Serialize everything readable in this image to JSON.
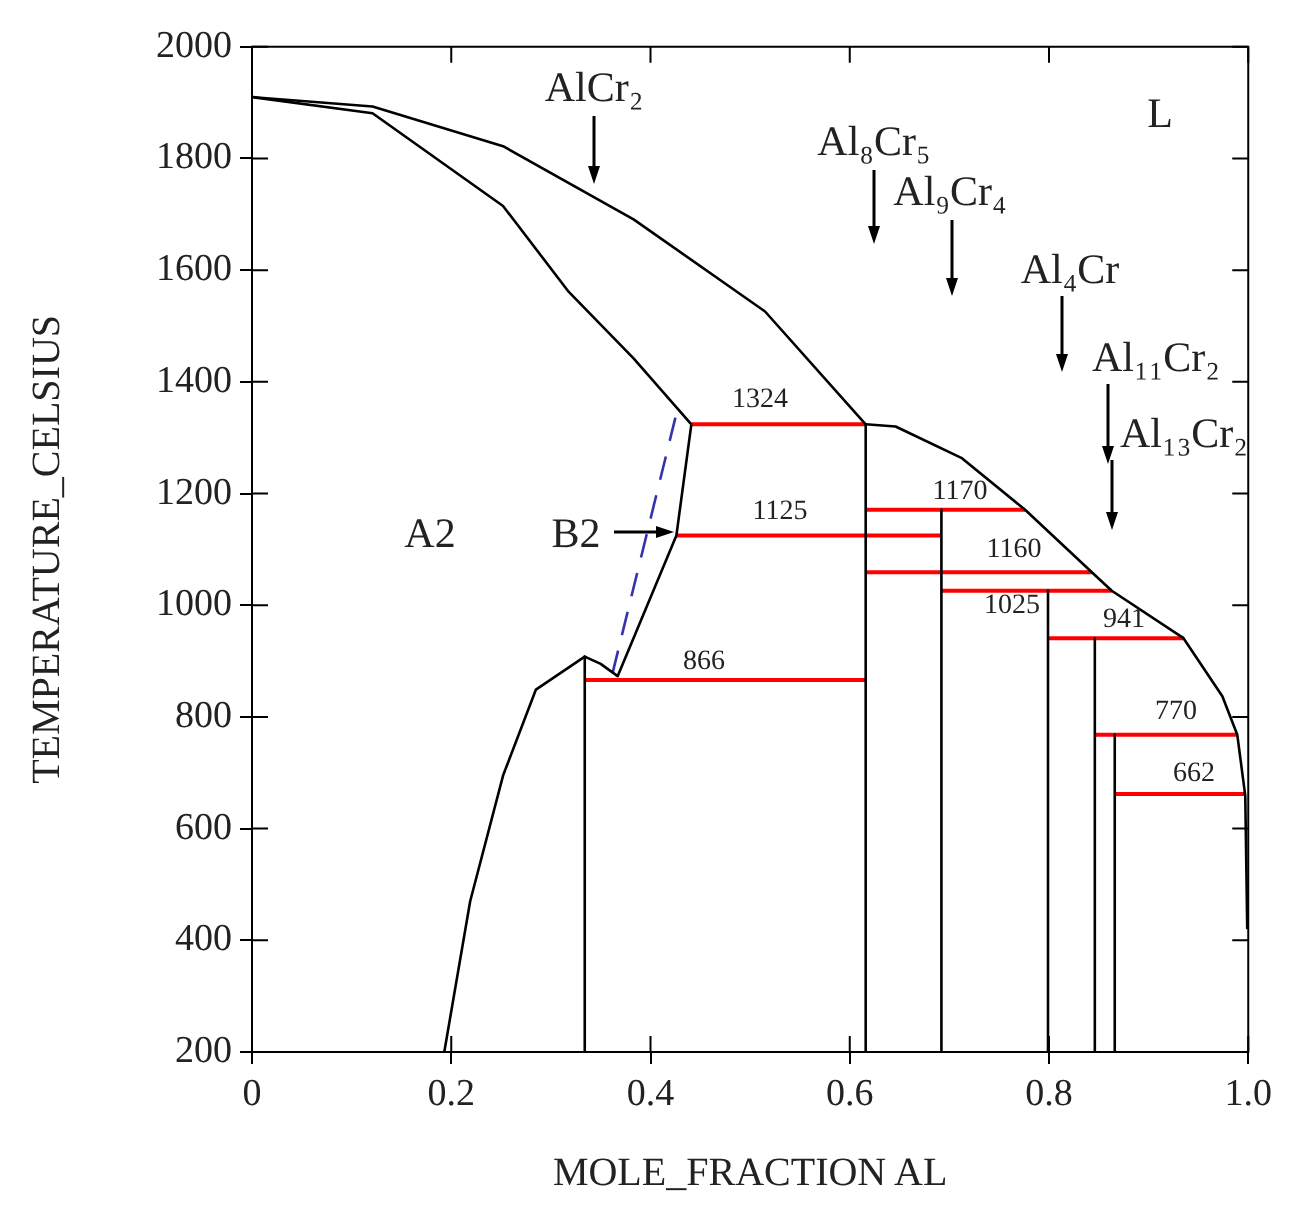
{
  "chart_data": {
    "type": "line",
    "xlabel": "MOLE_FRACTION AL",
    "ylabel": "TEMPERATURE_CELSIUS",
    "xlim": [
      0,
      1
    ],
    "ylim": [
      200,
      2000
    ],
    "xticks": [
      0,
      0.2,
      0.4,
      0.6,
      0.8,
      {
        "value": 1,
        "label": "1.0"
      }
    ],
    "yticks": [
      200,
      400,
      600,
      800,
      1000,
      1200,
      1400,
      1600,
      1800,
      2000
    ],
    "grid": false,
    "legend": false,
    "marker": "none",
    "series": [
      {
        "color": "#000000",
        "x": [
          0,
          0.121,
          0.252,
          0.383,
          0.515,
          0.616
        ],
        "values": [
          1910,
          1893,
          1822,
          1691,
          1526,
          1324
        ]
      },
      {
        "color": "#000000",
        "x": [
          0,
          0.121,
          0.252,
          0.318,
          0.383,
          0.441
        ],
        "values": [
          1910,
          1881,
          1715,
          1561,
          1442,
          1324
        ]
      },
      {
        "color": "#000000",
        "x": [
          0.441,
          0.426,
          0.367,
          0.35,
          0.334,
          0.285,
          0.252,
          0.219,
          0.193
        ],
        "values": [
          1324,
          1125,
          873,
          895,
          908,
          849,
          695,
          470,
          200
        ]
      },
      {
        "color": "#3333aa",
        "line_style": "dashed",
        "x": [
          0.425,
          0.362
        ],
        "values": [
          1336,
          879
        ]
      },
      {
        "color": "#000000",
        "x": [
          0.616,
          0.646,
          0.712,
          0.776,
          0.843,
          0.863,
          0.935,
          0.974,
          0.989,
          0.997,
          0.999
        ],
        "values": [
          1324,
          1320,
          1264,
          1171,
          1059,
          1026,
          941,
          837,
          768,
          659,
          420
        ]
      },
      {
        "color": "#000000",
        "x": [
          0.334,
          0.334
        ],
        "values": [
          908,
          200
        ]
      },
      {
        "color": "#000000",
        "x": [
          0.616,
          0.616
        ],
        "values": [
          1324,
          200
        ]
      },
      {
        "color": "#000000",
        "x": [
          0.692,
          0.692
        ],
        "values": [
          1171,
          200
        ]
      },
      {
        "color": "#000000",
        "x": [
          0.799,
          0.799
        ],
        "values": [
          1026,
          200
        ]
      },
      {
        "color": "#000000",
        "x": [
          0.846,
          0.846
        ],
        "values": [
          941,
          200
        ]
      },
      {
        "color": "#000000",
        "x": [
          0.866,
          0.866
        ],
        "values": [
          768,
          200
        ]
      },
      {
        "color": "#ff0000",
        "x": [
          0.441,
          0.616
        ],
        "values": [
          1324,
          1324
        ]
      },
      {
        "color": "#ff0000",
        "x": [
          0.426,
          0.692
        ],
        "values": [
          1125,
          1125
        ]
      },
      {
        "color": "#ff0000",
        "x": [
          0.334,
          0.616
        ],
        "values": [
          866,
          866
        ]
      },
      {
        "color": "#ff0000",
        "x": [
          0.616,
          0.776
        ],
        "values": [
          1171,
          1171
        ]
      },
      {
        "color": "#ff0000",
        "x": [
          0.616,
          0.843
        ],
        "values": [
          1059,
          1059
        ]
      },
      {
        "color": "#ff0000",
        "x": [
          0.692,
          0.863
        ],
        "values": [
          1026,
          1026
        ]
      },
      {
        "color": "#ff0000",
        "x": [
          0.799,
          0.935
        ],
        "values": [
          941,
          941
        ]
      },
      {
        "color": "#ff0000",
        "x": [
          0.846,
          0.989
        ],
        "values": [
          768,
          768
        ]
      },
      {
        "color": "#ff0000",
        "x": [
          0.866,
          0.997
        ],
        "values": [
          662,
          662
        ]
      }
    ],
    "annotations": [
      "AlCr₂",
      "Al₈Cr₅",
      "Al₉Cr₄",
      "Al₄Cr",
      "Al₁₁Cr₂",
      "Al₁₃Cr₂",
      "L",
      "A2",
      "B2",
      "1324",
      "1125",
      "866",
      "1170",
      "1160",
      "1025",
      "941",
      "770",
      "662"
    ]
  }
}
